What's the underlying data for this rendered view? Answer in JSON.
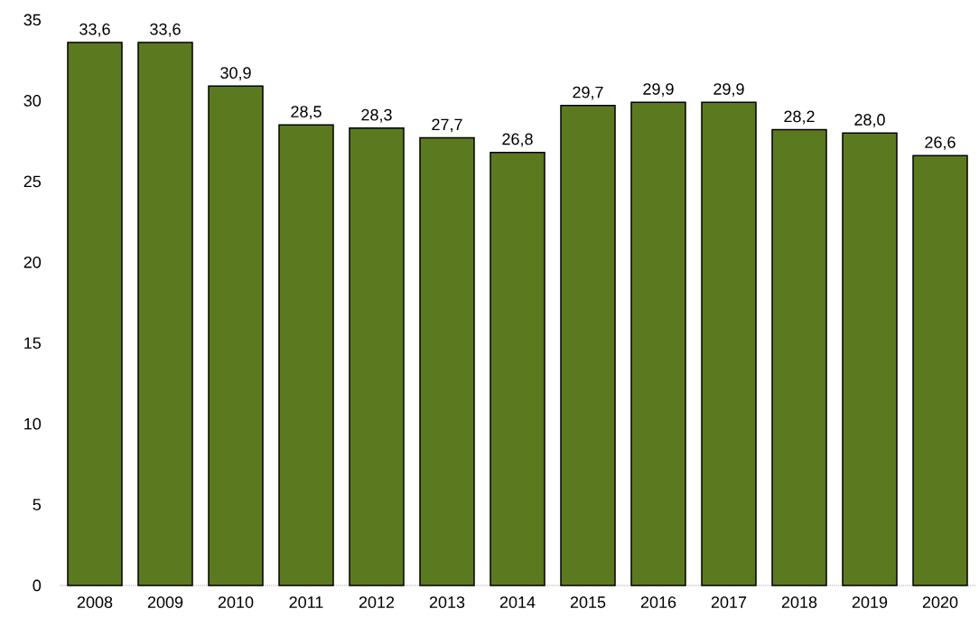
{
  "chart_data": {
    "type": "bar",
    "categories": [
      "2008",
      "2009",
      "2010",
      "2011",
      "2012",
      "2013",
      "2014",
      "2015",
      "2016",
      "2017",
      "2018",
      "2019",
      "2020"
    ],
    "values": [
      33.6,
      33.6,
      30.9,
      28.5,
      28.3,
      27.7,
      26.8,
      29.7,
      29.9,
      29.9,
      28.2,
      28.0,
      26.6
    ],
    "value_labels": [
      "33,6",
      "33,6",
      "30,9",
      "28,5",
      "28,3",
      "27,7",
      "26,8",
      "29,7",
      "29,9",
      "29,9",
      "28,2",
      "28,0",
      "26,6"
    ],
    "color": "#5b7a1f",
    "ylim": [
      0,
      35
    ],
    "yticks": [
      0,
      5,
      10,
      15,
      20,
      25,
      30,
      35
    ],
    "grid": false
  }
}
